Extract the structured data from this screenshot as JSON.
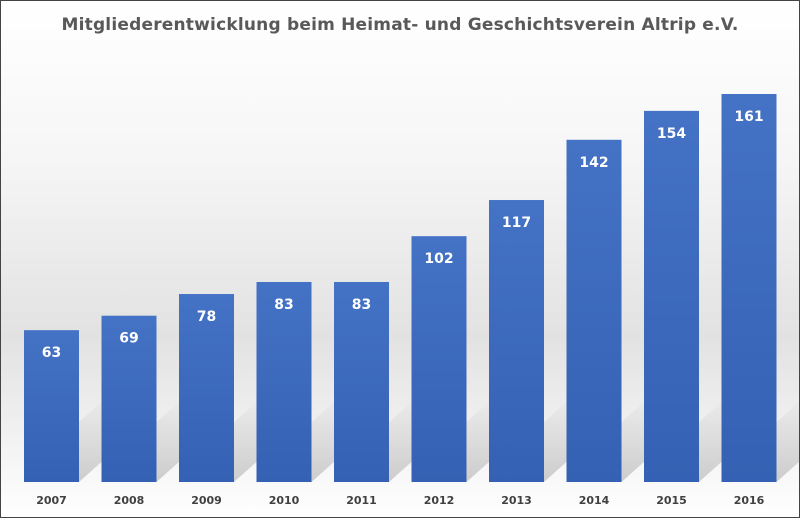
{
  "chart_data": {
    "type": "bar",
    "title": "Mitgliederentwicklung beim Heimat- und Geschichtsverein Altrip e.V.",
    "categories": [
      "2007",
      "2008",
      "2009",
      "2010",
      "2011",
      "2012",
      "2013",
      "2014",
      "2015",
      "2016"
    ],
    "values": [
      63,
      69,
      78,
      83,
      83,
      102,
      117,
      142,
      154,
      161
    ],
    "xlabel": "",
    "ylabel": "",
    "ylim": [
      0,
      161
    ],
    "grid": false,
    "data_labels": true,
    "colors": {
      "bar": "#3a65b8",
      "bar_top": "#4472c4",
      "label": "#ffffff",
      "tick": "#404040",
      "title": "#595959"
    }
  }
}
